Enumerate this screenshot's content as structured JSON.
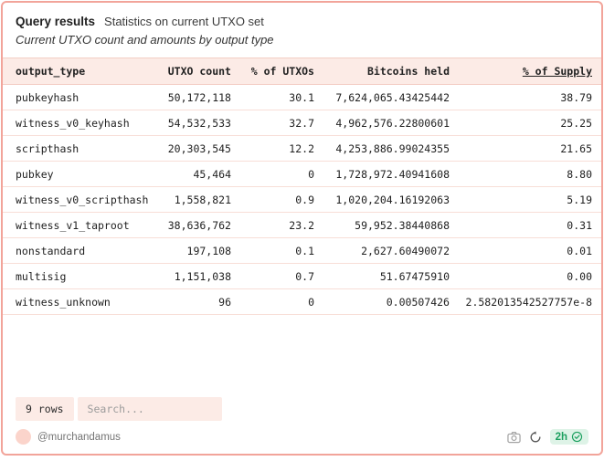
{
  "card": {
    "title": "Query results",
    "title_note": "Statistics on current UTXO set",
    "subtitle": "Current UTXO count and amounts by output type"
  },
  "table": {
    "columns": [
      {
        "key": "output_type",
        "label": "output_type",
        "align": "left",
        "sorted": false
      },
      {
        "key": "utxo_count",
        "label": "UTXO count",
        "align": "right",
        "sorted": false
      },
      {
        "key": "pct_of_utxos",
        "label": "% of UTXOs",
        "align": "right",
        "sorted": false
      },
      {
        "key": "bitcoins_held",
        "label": "Bitcoins held",
        "align": "right",
        "sorted": false
      },
      {
        "key": "pct_of_supply",
        "label": "% of Supply",
        "align": "right",
        "sorted": true
      }
    ],
    "rows": [
      [
        "pubkeyhash",
        "50,172,118",
        "30.1",
        "7,624,065.43425442",
        "38.79"
      ],
      [
        "witness_v0_keyhash",
        "54,532,533",
        "32.7",
        "4,962,576.22800601",
        "25.25"
      ],
      [
        "scripthash",
        "20,303,545",
        "12.2",
        "4,253,886.99024355",
        "21.65"
      ],
      [
        "pubkey",
        "45,464",
        "0",
        "1,728,972.40941608",
        "8.80"
      ],
      [
        "witness_v0_scripthash",
        "1,558,821",
        "0.9",
        "1,020,204.16192063",
        "5.19"
      ],
      [
        "witness_v1_taproot",
        "38,636,762",
        "23.2",
        "59,952.38440868",
        "0.31"
      ],
      [
        "nonstandard",
        "197,108",
        "0.1",
        "2,627.60490072",
        "0.01"
      ],
      [
        "multisig",
        "1,151,038",
        "0.7",
        "51.67475910",
        "0.00"
      ],
      [
        "witness_unknown",
        "96",
        "0",
        "0.00507426",
        "2.582013542527757e-8"
      ]
    ]
  },
  "footer": {
    "row_count_label": "9 rows",
    "search_placeholder": "Search...",
    "author_handle": "@murchandamus",
    "updated_label": "2h",
    "icons": {
      "camera": "camera-icon",
      "refresh": "refresh-icon",
      "verified": "verified-check-icon"
    }
  },
  "colors": {
    "accent_border": "#f2a49a",
    "header_bg": "#fcebe6",
    "header_border": "#f3cdc4",
    "row_border": "#f8ded7",
    "chip_bg": "#fcebe6",
    "avatar_bg": "#fbd4cb",
    "badge_bg": "#def3e7",
    "badge_text": "#1ca05f",
    "icon_gray": "#a3a3a3",
    "icon_dark": "#555555",
    "text_dark": "#212121",
    "text_gray": "#757575"
  }
}
